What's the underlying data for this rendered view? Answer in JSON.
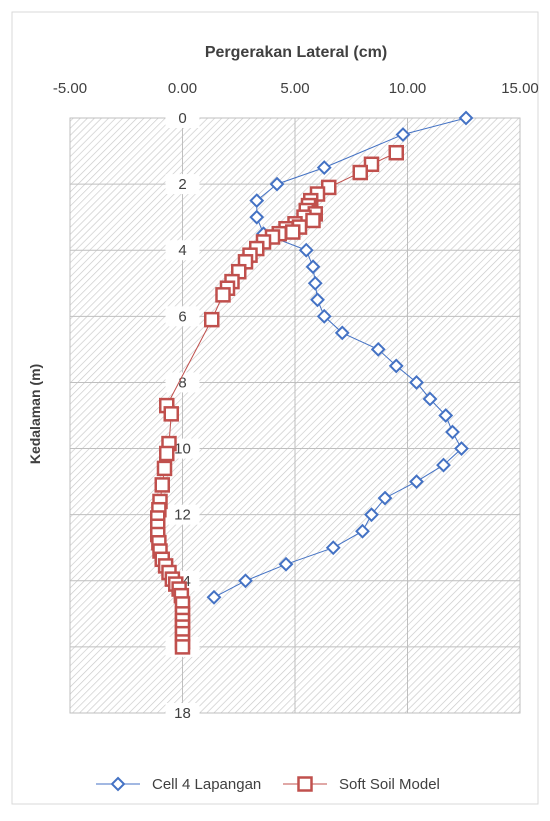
{
  "chart_data": {
    "type": "scatter",
    "title": "Pergerakan Lateral (cm)",
    "xlabel": "Pergerakan Lateral (cm)",
    "ylabel": "Kedalaman (m)",
    "xlim": [
      -5,
      15
    ],
    "ylim": [
      0,
      18
    ],
    "y_reversed": true,
    "x_axis_position": "top",
    "xticks": [
      -5,
      0,
      5,
      10,
      15
    ],
    "xtick_labels": [
      "-5.00",
      "0.00",
      "5.00",
      "10.00",
      "15.00"
    ],
    "yticks": [
      0,
      2,
      4,
      6,
      8,
      10,
      12,
      14,
      16,
      18
    ],
    "ytick_labels": [
      "0",
      "2",
      "4",
      "6",
      "8",
      "10",
      "12",
      "14",
      "16",
      "18"
    ],
    "plot_background": "diagonal-hatch",
    "legend_position": "bottom",
    "series": [
      {
        "name": "Cell 4 Lapangan",
        "color": "#4472C4",
        "marker": "diamond",
        "points": [
          [
            12.6,
            0
          ],
          [
            9.8,
            0.5
          ],
          [
            6.3,
            1.5
          ],
          [
            4.2,
            2.0
          ],
          [
            3.3,
            2.5
          ],
          [
            3.3,
            3.0
          ],
          [
            3.6,
            3.5
          ],
          [
            5.5,
            4.0
          ],
          [
            5.8,
            4.5
          ],
          [
            5.9,
            5.0
          ],
          [
            6.0,
            5.5
          ],
          [
            6.3,
            6.0
          ],
          [
            7.1,
            6.5
          ],
          [
            8.7,
            7.0
          ],
          [
            9.5,
            7.5
          ],
          [
            10.4,
            8.0
          ],
          [
            11.0,
            8.5
          ],
          [
            11.7,
            9.0
          ],
          [
            12.0,
            9.5
          ],
          [
            12.4,
            10.0
          ],
          [
            11.6,
            10.5
          ],
          [
            10.4,
            11.0
          ],
          [
            9.0,
            11.5
          ],
          [
            8.4,
            12.0
          ],
          [
            8.0,
            12.5
          ],
          [
            6.7,
            13.0
          ],
          [
            4.6,
            13.5
          ],
          [
            2.8,
            14.0
          ],
          [
            1.4,
            14.5
          ]
        ]
      },
      {
        "name": "Soft Soil Model",
        "color": "#C0504D",
        "marker": "square",
        "points": [
          [
            9.5,
            1.05
          ],
          [
            8.4,
            1.4
          ],
          [
            7.9,
            1.65
          ],
          [
            6.5,
            2.1
          ],
          [
            6.0,
            2.3
          ],
          [
            5.7,
            2.5
          ],
          [
            5.6,
            2.65
          ],
          [
            5.5,
            2.8
          ],
          [
            5.9,
            2.9
          ],
          [
            5.4,
            3.0
          ],
          [
            5.8,
            3.1
          ],
          [
            5.0,
            3.2
          ],
          [
            5.2,
            3.3
          ],
          [
            4.6,
            3.35
          ],
          [
            4.9,
            3.45
          ],
          [
            4.3,
            3.5
          ],
          [
            4.0,
            3.6
          ],
          [
            3.6,
            3.75
          ],
          [
            3.3,
            3.95
          ],
          [
            3.0,
            4.15
          ],
          [
            2.8,
            4.35
          ],
          [
            2.5,
            4.65
          ],
          [
            2.2,
            4.95
          ],
          [
            2.0,
            5.15
          ],
          [
            1.8,
            5.35
          ],
          [
            1.3,
            6.1
          ],
          [
            -0.7,
            8.7
          ],
          [
            -0.5,
            8.95
          ],
          [
            -0.6,
            9.85
          ],
          [
            -0.7,
            10.15
          ],
          [
            -0.8,
            10.6
          ],
          [
            -0.9,
            11.1
          ],
          [
            -1.0,
            11.6
          ],
          [
            -1.05,
            11.85
          ],
          [
            -1.1,
            12.1
          ],
          [
            -1.1,
            12.35
          ],
          [
            -1.1,
            12.6
          ],
          [
            -1.05,
            12.85
          ],
          [
            -1.0,
            13.1
          ],
          [
            -0.9,
            13.35
          ],
          [
            -0.75,
            13.55
          ],
          [
            -0.6,
            13.75
          ],
          [
            -0.45,
            13.95
          ],
          [
            -0.3,
            14.1
          ],
          [
            -0.15,
            14.25
          ],
          [
            -0.05,
            14.45
          ],
          [
            0.0,
            14.7
          ],
          [
            0.0,
            15.0
          ],
          [
            0.0,
            15.2
          ],
          [
            0.0,
            15.4
          ],
          [
            0.0,
            15.6
          ],
          [
            0.0,
            15.85
          ],
          [
            0.0,
            16.0
          ]
        ]
      }
    ]
  }
}
